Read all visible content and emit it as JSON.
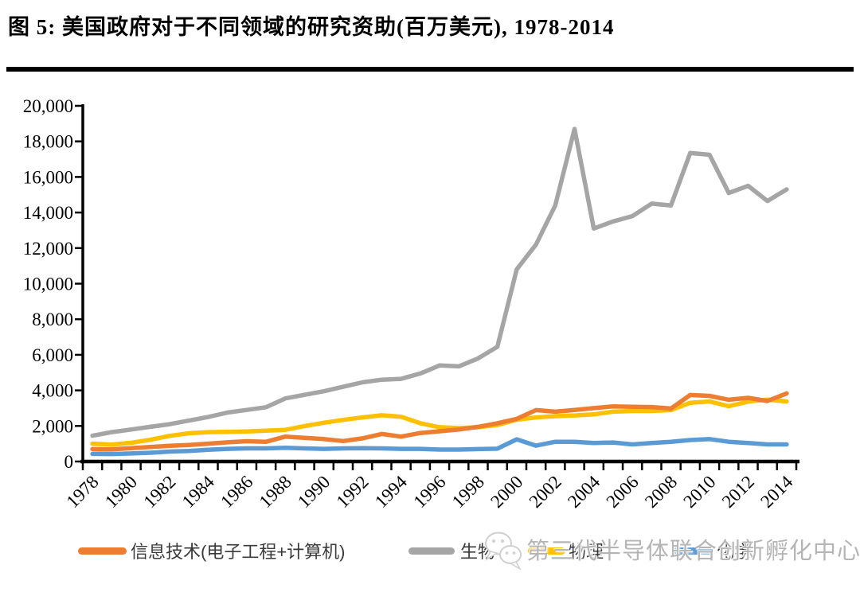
{
  "header": {
    "title": "图 5:  美国政府对于不同领域的研究资助(百万美元), 1978-2014"
  },
  "watermark": {
    "icon": "wechat-icon",
    "text": "第三代半导体联合创新孵化中心"
  },
  "chart_data": {
    "type": "line",
    "title": "美国政府对于不同领域的研究资助(百万美元), 1978-2014",
    "figure_label": "图 5",
    "unit": "百万美元",
    "xlabel": "",
    "ylabel": "",
    "grid": false,
    "legend_position": "bottom",
    "ylim": [
      0,
      20000
    ],
    "y_tick_step": 2000,
    "x_label_step": 2,
    "x": [
      1978,
      1979,
      1980,
      1981,
      1982,
      1983,
      1984,
      1985,
      1986,
      1987,
      1988,
      1989,
      1990,
      1991,
      1992,
      1993,
      1994,
      1995,
      1996,
      1997,
      1998,
      1999,
      2000,
      2001,
      2002,
      2003,
      2004,
      2005,
      2006,
      2007,
      2008,
      2009,
      2010,
      2011,
      2012,
      2013,
      2014
    ],
    "series": [
      {
        "id": "it",
        "name": "信息技术(电子工程+计算机)",
        "color": "#ED7D31",
        "values": [
          700,
          680,
          750,
          820,
          880,
          930,
          1000,
          1080,
          1140,
          1110,
          1400,
          1330,
          1260,
          1150,
          1300,
          1550,
          1400,
          1600,
          1700,
          1800,
          1950,
          2150,
          2400,
          2890,
          2800,
          2900,
          3000,
          3100,
          3080,
          3060,
          2980,
          3740,
          3690,
          3470,
          3580,
          3400,
          3830
        ]
      },
      {
        "id": "biology",
        "name": "生物",
        "color": "#A5A5A5",
        "values": [
          1450,
          1650,
          1800,
          1950,
          2100,
          2300,
          2500,
          2750,
          2900,
          3050,
          3550,
          3750,
          3950,
          4200,
          4450,
          4600,
          4650,
          4950,
          5400,
          5350,
          5800,
          6450,
          10800,
          12200,
          14400,
          18700,
          13100,
          13500,
          13800,
          14500,
          14400,
          17350,
          17250,
          15100,
          15500,
          14650,
          15300
        ]
      },
      {
        "id": "physics",
        "name": "物理",
        "color": "#FFC000",
        "values": [
          1000,
          950,
          1050,
          1220,
          1440,
          1590,
          1650,
          1670,
          1690,
          1730,
          1780,
          1990,
          2180,
          2340,
          2480,
          2600,
          2520,
          2150,
          1930,
          1880,
          1930,
          2050,
          2350,
          2480,
          2550,
          2590,
          2650,
          2800,
          2840,
          2840,
          2890,
          3300,
          3380,
          3110,
          3370,
          3480,
          3380
        ]
      },
      {
        "id": "chemistry",
        "name": "化学",
        "color": "#5B9BD5",
        "values": [
          430,
          420,
          450,
          490,
          560,
          590,
          660,
          710,
          740,
          740,
          770,
          740,
          710,
          740,
          750,
          740,
          710,
          710,
          670,
          670,
          700,
          720,
          1250,
          890,
          1110,
          1110,
          1040,
          1070,
          960,
          1040,
          1110,
          1210,
          1260,
          1110,
          1040,
          960,
          960
        ]
      }
    ]
  }
}
